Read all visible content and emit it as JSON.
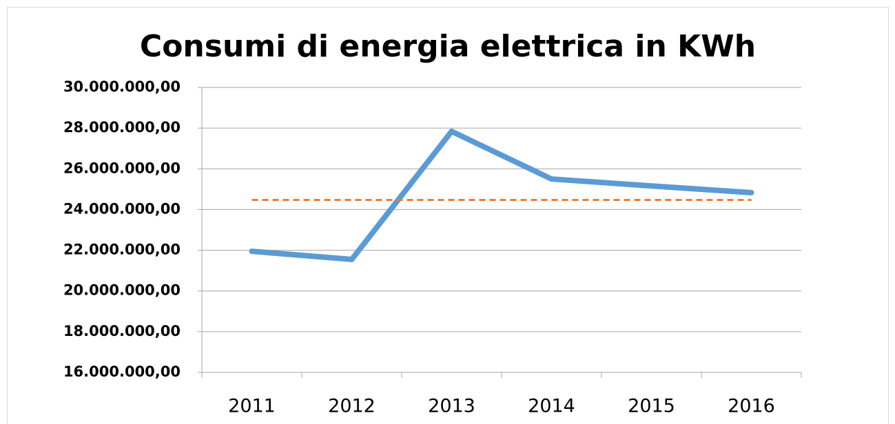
{
  "chart_data": {
    "type": "line",
    "title": "Consumi di energia elettrica in KWh",
    "categories": [
      "2011",
      "2012",
      "2013",
      "2014",
      "2015",
      "2016"
    ],
    "series": [
      {
        "color": "#5b9bd5",
        "values": [
          21950000,
          21550000,
          27840000,
          25500000,
          25160000,
          24830000
        ]
      },
      {
        "color": "#ed7d31",
        "dashed": true,
        "values": [
          24470000,
          24470000,
          24470000,
          24470000,
          24470000,
          24470000
        ]
      }
    ],
    "ylim": [
      16000000,
      30000000
    ],
    "yticks": [
      {
        "value": 16000000,
        "label": "16.000.000,00"
      },
      {
        "value": 18000000,
        "label": "18.000.000,00"
      },
      {
        "value": 20000000,
        "label": "20.000.000,00"
      },
      {
        "value": 22000000,
        "label": "22.000.000,00"
      },
      {
        "value": 24000000,
        "label": "24.000.000,00"
      },
      {
        "value": 26000000,
        "label": "26.000.000,00"
      },
      {
        "value": 28000000,
        "label": "28.000.000,00"
      },
      {
        "value": 30000000,
        "label": "30.000.000,00"
      }
    ],
    "grid": true
  }
}
